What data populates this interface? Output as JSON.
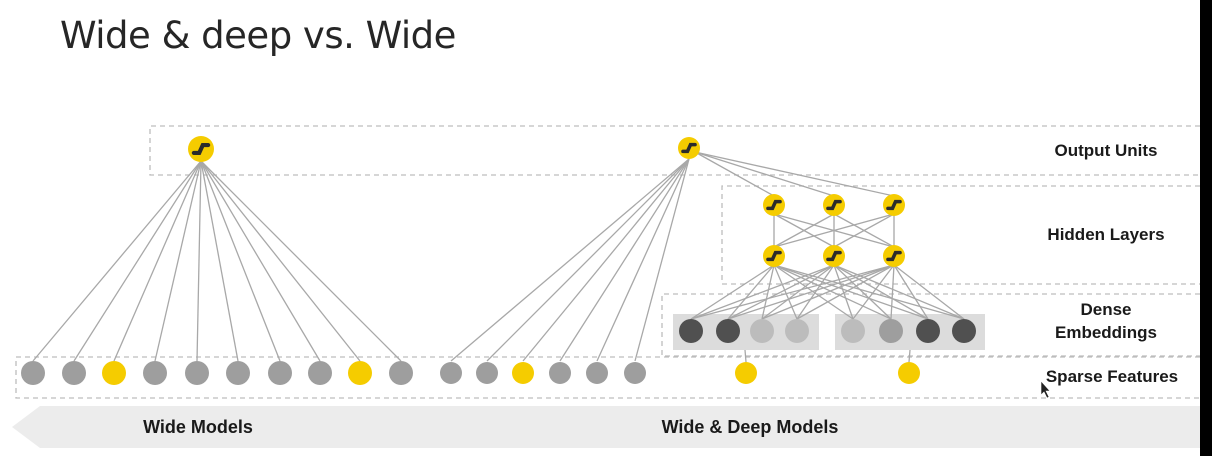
{
  "title": "Wide & deep vs. Wide",
  "layers": {
    "output": "Output Units",
    "hidden": "Hidden Layers",
    "dense_line1": "Dense",
    "dense_line2": "Embeddings",
    "sparse": "Sparse Features"
  },
  "models": {
    "wide": "Wide Models",
    "wide_deep": "Wide & Deep Models"
  },
  "colors": {
    "yellow": "#f5cc00",
    "gray": "#9e9e9e",
    "dark": "#505050",
    "light": "#bcbcbc",
    "edge": "#a8a8a8",
    "dash": "#bdbdbd",
    "footer": "#ececec"
  },
  "wide_model": {
    "sparse_nodes": [
      "gray",
      "gray",
      "yellow",
      "gray",
      "gray",
      "gray",
      "gray",
      "gray",
      "yellow",
      "gray"
    ]
  },
  "wide_deep_model": {
    "wide_sparse_nodes": [
      "gray",
      "gray",
      "yellow",
      "gray",
      "gray",
      "gray"
    ],
    "embeddings_left": [
      "dark",
      "dark",
      "light",
      "light"
    ],
    "embeddings_right": [
      "light",
      "gray",
      "dark",
      "dark"
    ],
    "hidden_units_per_layer": 3,
    "hidden_layers": 2
  }
}
